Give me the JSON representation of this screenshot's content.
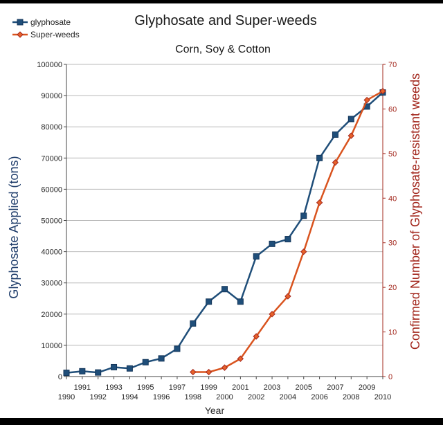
{
  "chart_data": {
    "type": "line",
    "title": "Glyphosate and Super-weeds",
    "subtitle": "Corn, Soy & Cotton",
    "xlabel": "Year",
    "ylabel_left": "Glyphosate Applied (tons)",
    "ylabel_right": "Confirmed Number of Glyphosate-resistant weeds",
    "xlim": [
      1990,
      2010
    ],
    "ylim_left": [
      0,
      100000
    ],
    "ylim_right": [
      0,
      70
    ],
    "x_ticks_lower": [
      "1990",
      "1992",
      "1994",
      "1996",
      "1998",
      "2000",
      "2002",
      "2004",
      "2006",
      "2008",
      "2010"
    ],
    "x_ticks_upper": [
      "1991",
      "1993",
      "1995",
      "1997",
      "1999",
      "2001",
      "2003",
      "2005",
      "2007",
      "2009"
    ],
    "y_ticks_left": [
      "0",
      "10000",
      "20000",
      "30000",
      "40000",
      "50000",
      "60000",
      "70000",
      "80000",
      "90000",
      "100000"
    ],
    "y_ticks_right": [
      "0",
      "10",
      "20",
      "30",
      "40",
      "50",
      "60",
      "70"
    ],
    "grid": true,
    "legend_position": "top-left",
    "series": [
      {
        "name": "glyphosate",
        "axis": "left",
        "color": "#1f4e79",
        "marker": "square",
        "x": [
          1990,
          1991,
          1992,
          1993,
          1994,
          1995,
          1996,
          1997,
          1998,
          1999,
          2000,
          2001,
          2002,
          2003,
          2004,
          2005,
          2006,
          2007,
          2008,
          2009,
          2010
        ],
        "values": [
          1200,
          1700,
          1300,
          3000,
          2600,
          4600,
          5800,
          8900,
          17000,
          24000,
          28000,
          24000,
          38500,
          42500,
          44000,
          51500,
          70000,
          77500,
          82500,
          86500,
          91000
        ]
      },
      {
        "name": "Super-weeds",
        "axis": "right",
        "color": "#d9531e",
        "marker": "diamond",
        "x": [
          1998,
          1999,
          2000,
          2001,
          2002,
          2003,
          2004,
          2005,
          2006,
          2007,
          2008,
          2009,
          2010
        ],
        "values": [
          1,
          1,
          2,
          4,
          9,
          14,
          18,
          28,
          39,
          48,
          54,
          62,
          64
        ]
      }
    ]
  }
}
